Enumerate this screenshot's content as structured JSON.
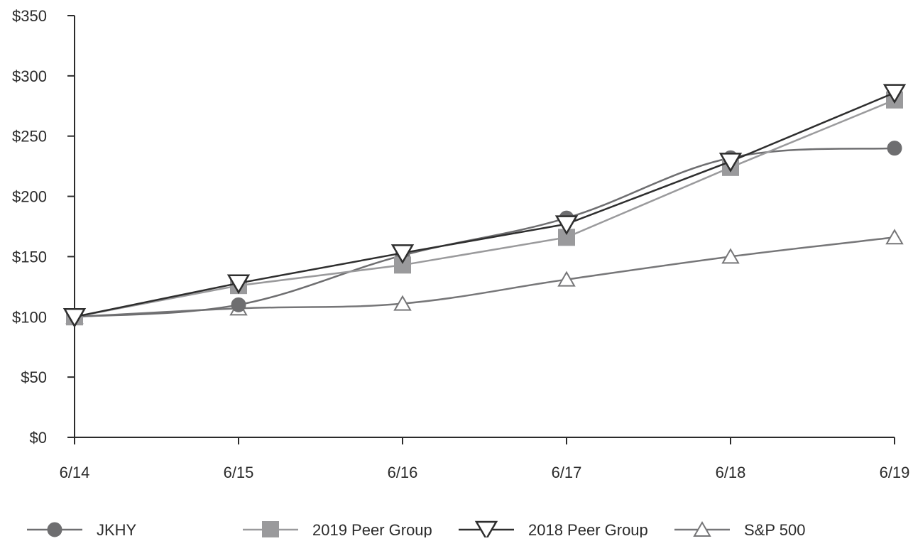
{
  "chart_data": {
    "type": "line",
    "title": "",
    "xlabel": "",
    "ylabel": "",
    "categories": [
      "6/14",
      "6/15",
      "6/16",
      "6/17",
      "6/18",
      "6/19"
    ],
    "ylim": [
      0,
      350
    ],
    "yticks": [
      0,
      50,
      100,
      150,
      200,
      250,
      300,
      350
    ],
    "ytick_labels": [
      "$0",
      "$50",
      "$100",
      "$150",
      "$200",
      "$250",
      "$300",
      "$350"
    ],
    "grid": false,
    "legend_position": "bottom",
    "series": [
      {
        "name": "JKHY",
        "values": [
          100,
          110,
          151,
          182,
          232,
          240
        ],
        "color": "#6e6e70",
        "marker": "circle",
        "smooth": true
      },
      {
        "name": "2019 Peer Group",
        "values": [
          100,
          126,
          143,
          166,
          224,
          280
        ],
        "color": "#9a9a9c",
        "marker": "square",
        "smooth": false
      },
      {
        "name": "2018 Peer Group",
        "values": [
          100,
          128,
          153,
          177,
          229,
          286
        ],
        "color": "#2e2e2e",
        "marker": "triangle-down",
        "smooth": false
      },
      {
        "name": "S&P 500",
        "values": [
          100,
          107,
          111,
          131,
          150,
          166
        ],
        "color": "#767678",
        "marker": "triangle-up",
        "smooth": true
      }
    ]
  }
}
